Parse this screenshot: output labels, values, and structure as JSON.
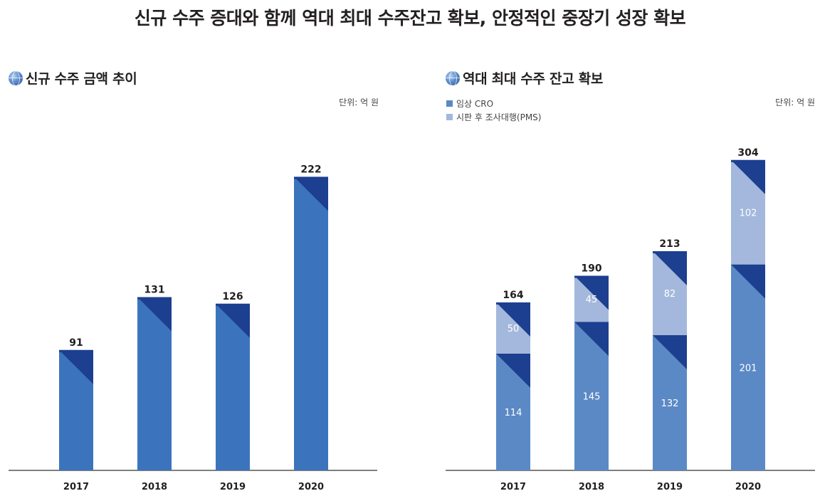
{
  "page": {
    "title": "신규 수주 증대와 함께 역대 최대 수주잔고 확보, 안정적인 중장기 성장 확보"
  },
  "colors": {
    "bar_left": "#3b74bc",
    "bar_cro": "#5b89c6",
    "bar_pms": "#a3b8dc",
    "corner_dark": "#1c3f8f",
    "axis": "#555555"
  },
  "chart_data": [
    {
      "type": "bar",
      "title": "신규 수주 금액 추이",
      "unit": "단위: 억 원",
      "categories": [
        "2017",
        "2018",
        "2019",
        "2020"
      ],
      "values": [
        91,
        131,
        126,
        222
      ],
      "ylim": [
        0,
        240
      ],
      "grid": false
    },
    {
      "type": "bar",
      "stacked": true,
      "title": "역대 최대 수주 잔고 확보",
      "unit": "단위: 억 원",
      "categories": [
        "2017",
        "2018",
        "2019",
        "2020"
      ],
      "series": [
        {
          "name": "임상 CRO",
          "values": [
            114,
            145,
            132,
            201
          ]
        },
        {
          "name": "시판 후 조사대행(PMS)",
          "values": [
            50,
            45,
            82,
            102
          ]
        }
      ],
      "totals": [
        164,
        190,
        213,
        304
      ],
      "ylim": [
        0,
        330
      ],
      "legend": "top-left",
      "grid": false
    }
  ]
}
